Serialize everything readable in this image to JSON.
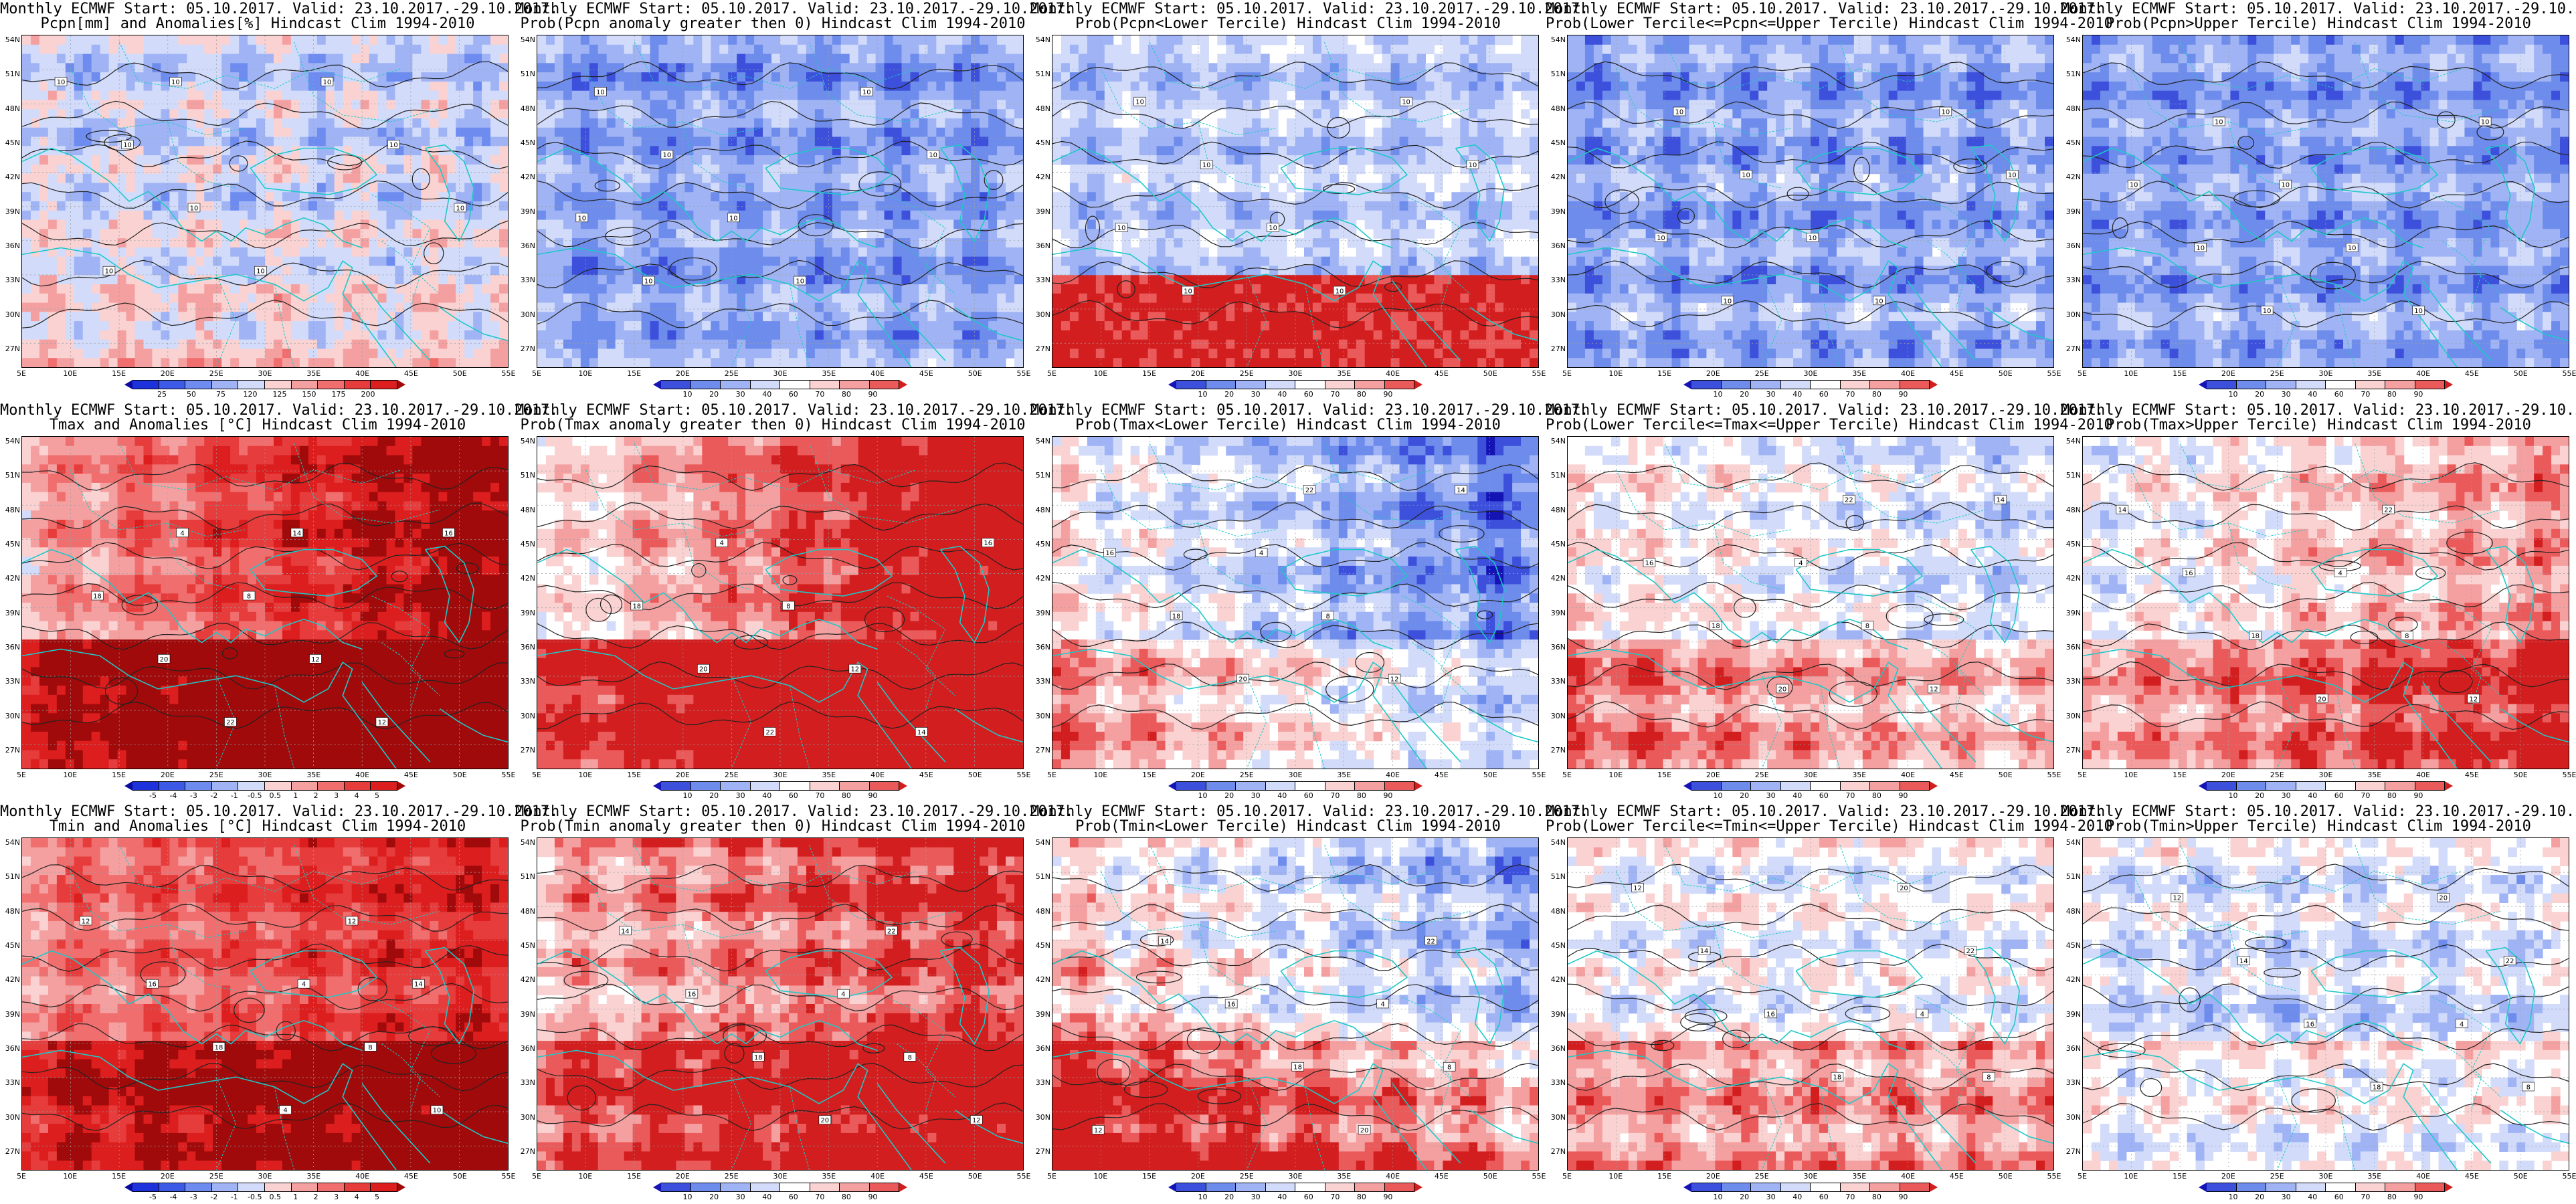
{
  "colors": {
    "coast": "#1ec8c8",
    "contour": "#222222",
    "grid": "#9aa0a6"
  },
  "lat_labels": [
    "54N",
    "51N",
    "48N",
    "45N",
    "42N",
    "39N",
    "36N",
    "33N",
    "30N",
    "27N"
  ],
  "lon_labels": [
    "5E",
    "10E",
    "15E",
    "20E",
    "25E",
    "30E",
    "35E",
    "40E",
    "45E",
    "50E",
    "55E"
  ],
  "palettes": {
    "anomaly": [
      "#0a0aa0",
      "#1e32dc",
      "#3c5ae6",
      "#6e8cf0",
      "#a0b4f5",
      "#d2dcfa",
      "#fad2d2",
      "#f5a0a0",
      "#f06e6e",
      "#e63c3c",
      "#dc1e1e",
      "#a00a0a"
    ],
    "prob": [
      "#1414b4",
      "#3c50dc",
      "#6e8ceb",
      "#a0b4f5",
      "#d2dcfa",
      "#ffffff",
      "#fad2d2",
      "#f5a0a0",
      "#eb5a5a",
      "#d21e1e"
    ]
  },
  "panels": [
    {
      "title": "Monthly ECMWF Start: 05.10.2017. Valid: 23.10.2017.-29.10.2017.",
      "subtitle": "Pcpn[mm] and Anomalies[%] Hindcast Clim 1994-2010",
      "palette": "anomaly",
      "colorbar_labels": [
        "25",
        "50",
        "75",
        "120",
        "125",
        "150",
        "175",
        "200"
      ],
      "base": 5,
      "south": 1,
      "north": -0.8,
      "noise": 0.7,
      "contour_labels": [
        "10",
        "10",
        "10",
        "10",
        "10",
        "10",
        "10",
        "10",
        "10"
      ]
    },
    {
      "title": "Monthly ECMWF Start: 05.10.2017. Valid: 23.10.2017.-29.10.2017.",
      "subtitle": "Prob(Pcpn anomaly greater then 0) Hindcast Clim 1994-2010",
      "palette": "prob",
      "colorbar_labels": [
        "10",
        "20",
        "30",
        "40",
        "60",
        "70",
        "80",
        "90"
      ],
      "base": 3,
      "south": 0,
      "north": -1.3,
      "noise": 0.6,
      "contour_labels": [
        "10",
        "10",
        "10",
        "10",
        "10",
        "10",
        "10",
        "10"
      ]
    },
    {
      "title": "Monthly ECMWF Start: 05.10.2017. Valid: 23.10.2017.-29.10.2017.",
      "subtitle": "Prob(Pcpn<Lower Tercile) Hindcast Clim 1994-2010",
      "palette": "prob",
      "colorbar_labels": [
        "10",
        "20",
        "30",
        "40",
        "60",
        "70",
        "80",
        "90"
      ],
      "base": 4,
      "south": 0,
      "north": -1.3,
      "noise": 0.6,
      "south_override": 9,
      "contour_labels": [
        "10",
        "10",
        "10",
        "10",
        "10",
        "10",
        "10",
        "10"
      ]
    },
    {
      "title": "Monthly ECMWF Start: 05.10.2017. Valid: 23.10.2017.-29.10.2017.",
      "subtitle": "Prob(Lower Tercile<=Pcpn<=Upper Tercile) Hindcast Clim 1994-2010",
      "palette": "prob",
      "colorbar_labels": [
        "10",
        "20",
        "30",
        "40",
        "60",
        "70",
        "80",
        "90"
      ],
      "base": 3,
      "south": 0,
      "north": -1.0,
      "noise": 0.7,
      "contour_labels": [
        "10",
        "10",
        "10",
        "10",
        "10",
        "10",
        "10",
        "10"
      ]
    },
    {
      "title": "Monthly ECMWF Start: 05.10.2017. Valid: 23.10.2017.-29.10.2017.",
      "subtitle": "Prob(Pcpn>Upper Tercile) Hindcast Clim 1994-2010",
      "palette": "prob",
      "colorbar_labels": [
        "10",
        "20",
        "30",
        "40",
        "60",
        "70",
        "80",
        "90"
      ],
      "base": 3,
      "south": 0,
      "north": -1.2,
      "noise": 0.6,
      "contour_labels": [
        "10",
        "10",
        "10",
        "10",
        "10",
        "10",
        "10",
        "10"
      ]
    },
    {
      "title": "Monthly ECMWF Start: 05.10.2017. Valid: 23.10.2017.-29.10.2017.",
      "subtitle": "Tmax and Anomalies [°C] Hindcast Clim 1994-2010",
      "palette": "anomaly",
      "colorbar_labels": [
        "-5",
        "-4",
        "-3",
        "-2",
        "-1",
        "-0.5",
        "0.5",
        "1",
        "2",
        "3",
        "4",
        "5"
      ],
      "base": 6,
      "south": 6,
      "north": 7,
      "east": 2.5,
      "noise": 0.6,
      "contour_labels": [
        "4",
        "8",
        "12",
        "12",
        "16",
        "18",
        "20",
        "22",
        "14"
      ]
    },
    {
      "title": "Monthly ECMWF Start: 05.10.2017. Valid: 23.10.2017.-29.10.2017.",
      "subtitle": "Prob(Tmax anomaly greater then 0) Hindcast Clim 1994-2010",
      "palette": "prob",
      "colorbar_labels": [
        "10",
        "20",
        "30",
        "40",
        "60",
        "70",
        "80",
        "90"
      ],
      "base": 5,
      "south": 5,
      "north": 6.5,
      "east": 2.6,
      "noise": 0.6,
      "contour_labels": [
        "4",
        "8",
        "12",
        "14",
        "16",
        "18",
        "20",
        "22"
      ]
    },
    {
      "title": "Monthly ECMWF Start: 05.10.2017. Valid: 23.10.2017.-29.10.2017.",
      "subtitle": "Prob(Tmax<Lower Tercile) Hindcast Clim 1994-2010",
      "palette": "prob",
      "colorbar_labels": [
        "10",
        "20",
        "30",
        "40",
        "60",
        "70",
        "80",
        "90"
      ],
      "base": 3,
      "south": 3,
      "north": 2,
      "east": -1.8,
      "noise": 0.7,
      "contour_labels": [
        "4",
        "8",
        "12",
        "14",
        "16",
        "18",
        "20",
        "22"
      ]
    },
    {
      "title": "Monthly ECMWF Start: 05.10.2017. Valid: 23.10.2017.-29.10.2017.",
      "subtitle": "Prob(Lower Tercile<=Tmax<=Upper Tercile) Hindcast Clim 1994-2010",
      "palette": "prob",
      "colorbar_labels": [
        "10",
        "20",
        "30",
        "40",
        "60",
        "70",
        "80",
        "90"
      ],
      "base": 3.5,
      "south": 3.5,
      "north": 3.5,
      "east": -0.8,
      "noise": 0.7,
      "contour_labels": [
        "4",
        "8",
        "12",
        "14",
        "16",
        "18",
        "20",
        "22"
      ]
    },
    {
      "title": "Monthly ECMWF Start: 05.10.2017. Valid: 23.10.2017.-29.10.2017.",
      "subtitle": "Prob(Tmax>Upper Tercile) Hindcast Clim 1994-2010",
      "palette": "prob",
      "colorbar_labels": [
        "10",
        "20",
        "30",
        "40",
        "60",
        "70",
        "80",
        "90"
      ],
      "base": 4,
      "south": 3.5,
      "north": 4.5,
      "east": 1.2,
      "noise": 0.7,
      "contour_labels": [
        "4",
        "8",
        "12",
        "14",
        "16",
        "18",
        "20",
        "22"
      ]
    },
    {
      "title": "Monthly ECMWF Start: 05.10.2017. Valid: 23.10.2017.-29.10.2017.",
      "subtitle": "Tmin and Anomalies [°C] Hindcast Clim 1994-2010",
      "palette": "anomaly",
      "colorbar_labels": [
        "-5",
        "-4",
        "-3",
        "-2",
        "-1",
        "-0.5",
        "0.5",
        "1",
        "2",
        "3",
        "4",
        "5"
      ],
      "base": 6,
      "south": 4.5,
      "north": 7,
      "east": 1.2,
      "noise": 0.6,
      "contour_labels": [
        "4",
        "8",
        "10",
        "12",
        "16",
        "18",
        "4",
        "12",
        "14"
      ]
    },
    {
      "title": "Monthly ECMWF Start: 05.10.2017. Valid: 23.10.2017.-29.10.2017.",
      "subtitle": "Prob(Tmin anomaly greater then 0) Hindcast Clim 1994-2010",
      "palette": "prob",
      "colorbar_labels": [
        "10",
        "20",
        "30",
        "40",
        "60",
        "70",
        "80",
        "90"
      ],
      "base": 5,
      "south": 3.5,
      "north": 7,
      "east": 1.2,
      "noise": 0.7,
      "contour_labels": [
        "4",
        "8",
        "12",
        "14",
        "16",
        "18",
        "20",
        "22"
      ]
    },
    {
      "title": "Monthly ECMWF Start: 05.10.2017. Valid: 23.10.2017.-29.10.2017.",
      "subtitle": "Prob(Tmin<Lower Tercile) Hindcast Clim 1994-2010",
      "palette": "prob",
      "colorbar_labels": [
        "10",
        "20",
        "30",
        "40",
        "60",
        "70",
        "80",
        "90"
      ],
      "base": 4,
      "south": 5,
      "north": 1,
      "east": -1.5,
      "noise": 0.8,
      "contour_labels": [
        "4",
        "8",
        "12",
        "14",
        "16",
        "18",
        "20",
        "22"
      ]
    },
    {
      "title": "Monthly ECMWF Start: 05.10.2017. Valid: 23.10.2017.-29.10.2017.",
      "subtitle": "Prob(Lower Tercile<=Tmin<=Upper Tercile) Hindcast Clim 1994-2010",
      "palette": "prob",
      "colorbar_labels": [
        "10",
        "20",
        "30",
        "40",
        "60",
        "70",
        "80",
        "90"
      ],
      "base": 3.5,
      "south": 3.5,
      "north": 3.5,
      "noise": 0.7,
      "contour_labels": [
        "4",
        "8",
        "12",
        "14",
        "16",
        "18",
        "20",
        "22"
      ]
    },
    {
      "title": "Monthly ECMWF Start: 05.10.2017. Valid: 23.10.2017.-29.10.2017.",
      "subtitle": "Prob(Tmin>Upper Tercile) Hindcast Clim 1994-2010",
      "palette": "prob",
      "colorbar_labels": [
        "10",
        "20",
        "30",
        "40",
        "60",
        "70",
        "80",
        "90"
      ],
      "base": 3,
      "south": 1.5,
      "north": 4,
      "noise": 0.7,
      "contour_labels": [
        "4",
        "8",
        "12",
        "14",
        "16",
        "18",
        "20",
        "22"
      ]
    }
  ]
}
